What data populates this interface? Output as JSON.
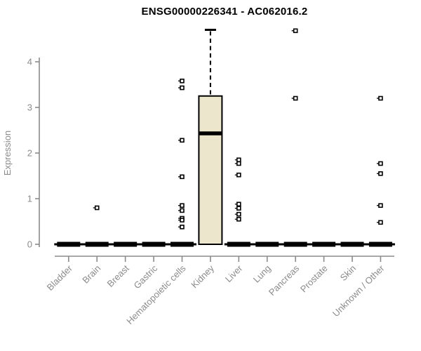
{
  "chart_data": {
    "type": "boxplot",
    "title": "ENSG00000226341 - AC062016.2",
    "ylabel": "Expression",
    "xlabel": "",
    "ylim": [
      0,
      4
    ],
    "yticks": [
      0,
      1,
      2,
      3,
      4
    ],
    "grid": false,
    "legend": null,
    "categories": [
      "Bladder",
      "Brain",
      "Breast",
      "Gastric",
      "Hematopoietic cells",
      "Kidney",
      "Liver",
      "Lung",
      "Pancreas",
      "Prostate",
      "Skin",
      "Unknown / Other"
    ],
    "series": [
      {
        "category": "Bladder",
        "whisker_low": 0,
        "q1": 0,
        "median": 0,
        "q3": 0,
        "whisker_high": 0,
        "outliers": []
      },
      {
        "category": "Brain",
        "whisker_low": 0,
        "q1": 0,
        "median": 0,
        "q3": 0,
        "whisker_high": 0,
        "outliers": [
          0.8
        ]
      },
      {
        "category": "Breast",
        "whisker_low": 0,
        "q1": 0,
        "median": 0,
        "q3": 0,
        "whisker_high": 0,
        "outliers": []
      },
      {
        "category": "Gastric",
        "whisker_low": 0,
        "q1": 0,
        "median": 0,
        "q3": 0,
        "whisker_high": 0,
        "outliers": []
      },
      {
        "category": "Hematopoietic cells",
        "whisker_low": 0,
        "q1": 0,
        "median": 0,
        "q3": 0,
        "whisker_high": 0,
        "outliers": [
          3.58,
          3.43,
          2.28,
          1.48,
          0.85,
          0.74,
          0.57,
          0.53,
          0.38
        ]
      },
      {
        "category": "Kidney",
        "whisker_low": 0,
        "q1": 0,
        "median": 2.43,
        "q3": 3.25,
        "whisker_high": 4.7,
        "outliers": []
      },
      {
        "category": "Liver",
        "whisker_low": 0,
        "q1": 0,
        "median": 0,
        "q3": 0,
        "whisker_high": 0,
        "outliers": [
          1.85,
          1.77,
          1.52,
          0.88,
          0.79,
          0.66,
          0.55
        ]
      },
      {
        "category": "Lung",
        "whisker_low": 0,
        "q1": 0,
        "median": 0,
        "q3": 0,
        "whisker_high": 0,
        "outliers": []
      },
      {
        "category": "Pancreas",
        "whisker_low": 0,
        "q1": 0,
        "median": 0,
        "q3": 0,
        "whisker_high": 0,
        "outliers": [
          4.68,
          3.2
        ]
      },
      {
        "category": "Prostate",
        "whisker_low": 0,
        "q1": 0,
        "median": 0,
        "q3": 0,
        "whisker_high": 0,
        "outliers": []
      },
      {
        "category": "Skin",
        "whisker_low": 0,
        "q1": 0,
        "median": 0,
        "q3": 0,
        "whisker_high": 0,
        "outliers": []
      },
      {
        "category": "Unknown / Other",
        "whisker_low": 0,
        "q1": 0,
        "median": 0,
        "q3": 0,
        "whisker_high": 0,
        "outliers": [
          3.2,
          1.77,
          1.55,
          0.85,
          0.48
        ]
      }
    ],
    "colors": {
      "box_fill": "#ece6cd",
      "box_stroke": "#000000",
      "flat_bar": "#000000",
      "outlier_stroke": "#000000",
      "axis": "#8b8b8b",
      "tick_label": "#8b8b8b",
      "title": "#000000"
    }
  }
}
